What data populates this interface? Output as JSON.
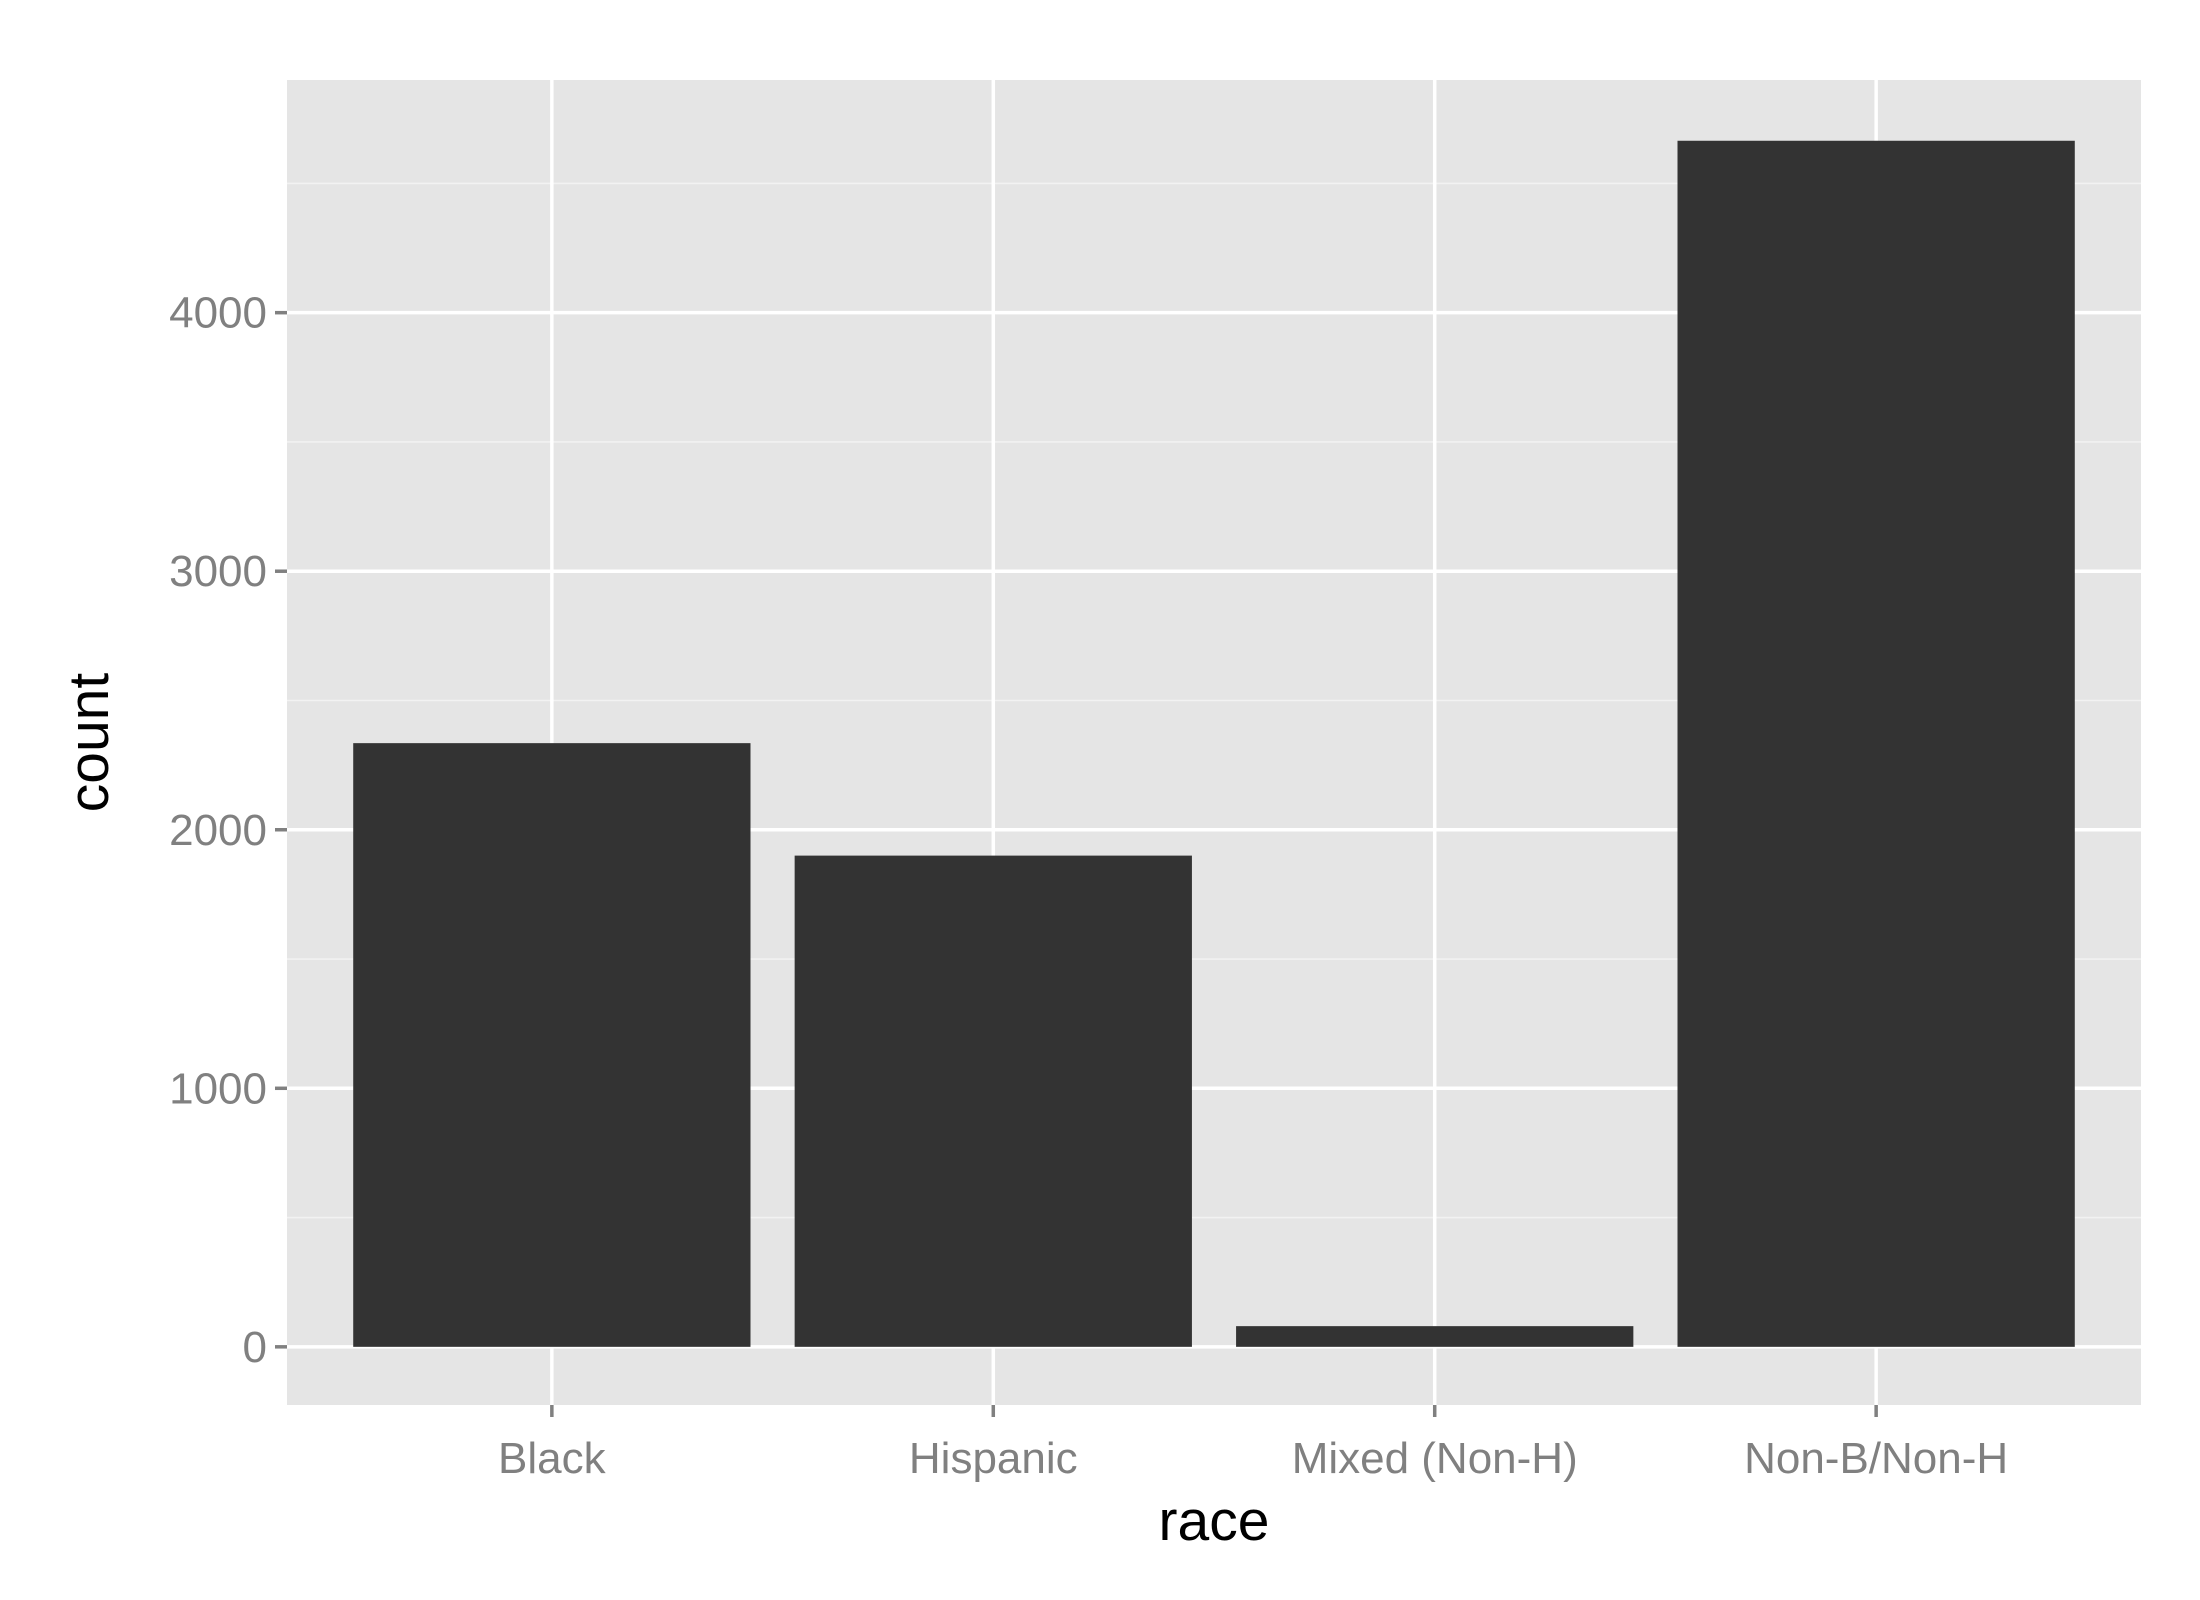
{
  "chart_data": {
    "type": "bar",
    "categories": [
      "Black",
      "Hispanic",
      "Mixed (Non-H)",
      "Non-B/Non-H"
    ],
    "values": [
      2335,
      1900,
      80,
      4665
    ],
    "xlabel": "race",
    "ylabel": "count",
    "ylim": [
      -225,
      4900
    ],
    "yticks": [
      0,
      1000,
      2000,
      3000,
      4000
    ],
    "grid": true,
    "colors": {
      "panel": "#e5e5e5",
      "grid_major": "#ffffff",
      "grid_minor": "#f2f2f2",
      "bar": "#333333",
      "tick_text": "#808080",
      "tick_mark": "#808080"
    }
  }
}
